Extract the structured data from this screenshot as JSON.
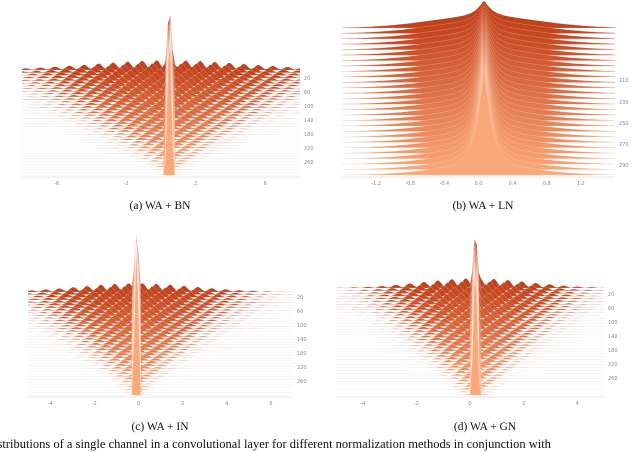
{
  "chart_data": [
    {
      "id": "a",
      "type": "ridgeline-histogram",
      "caption": "(a) WA + BN",
      "x_ticks": [
        "-6",
        "-2",
        "2",
        "6"
      ],
      "y_ticks": [
        "20",
        "60",
        "100",
        "140",
        "180",
        "220",
        "260"
      ],
      "xlim": [
        -8,
        8
      ],
      "grid": false
    },
    {
      "id": "b",
      "type": "ridgeline-histogram",
      "caption": "(b) WA + LN",
      "x_ticks": [
        "-1.2",
        "-0.8",
        "-0.4",
        "0.0",
        "0.4",
        "0.8",
        "1.2"
      ],
      "y_ticks": [
        "210",
        "230",
        "250",
        "270",
        "290"
      ],
      "xlim": [
        -1.4,
        1.2
      ],
      "grid": false
    },
    {
      "id": "c",
      "type": "ridgeline-histogram",
      "caption": "(c) WA + IN",
      "x_ticks": [
        "-4",
        "-2",
        "0",
        "2",
        "4",
        "6"
      ],
      "y_ticks": [
        "20",
        "60",
        "100",
        "140",
        "180",
        "220",
        "260"
      ],
      "xlim": [
        -6,
        7
      ],
      "grid": false
    },
    {
      "id": "d",
      "type": "ridgeline-histogram",
      "caption": "(d) WA + GN",
      "x_ticks": [
        "-4",
        "-2",
        "0",
        "2",
        "4"
      ],
      "y_ticks": [
        "20",
        "60",
        "100",
        "140",
        "180",
        "220",
        "260"
      ],
      "xlim": [
        -5,
        4
      ],
      "grid": false
    }
  ],
  "colors": {
    "ridge_old": "#c2401a",
    "ridge_new": "#fba878"
  },
  "figure_caption": "istributions of a single channel in a convolutional layer for different normalization methods in conjunction with"
}
